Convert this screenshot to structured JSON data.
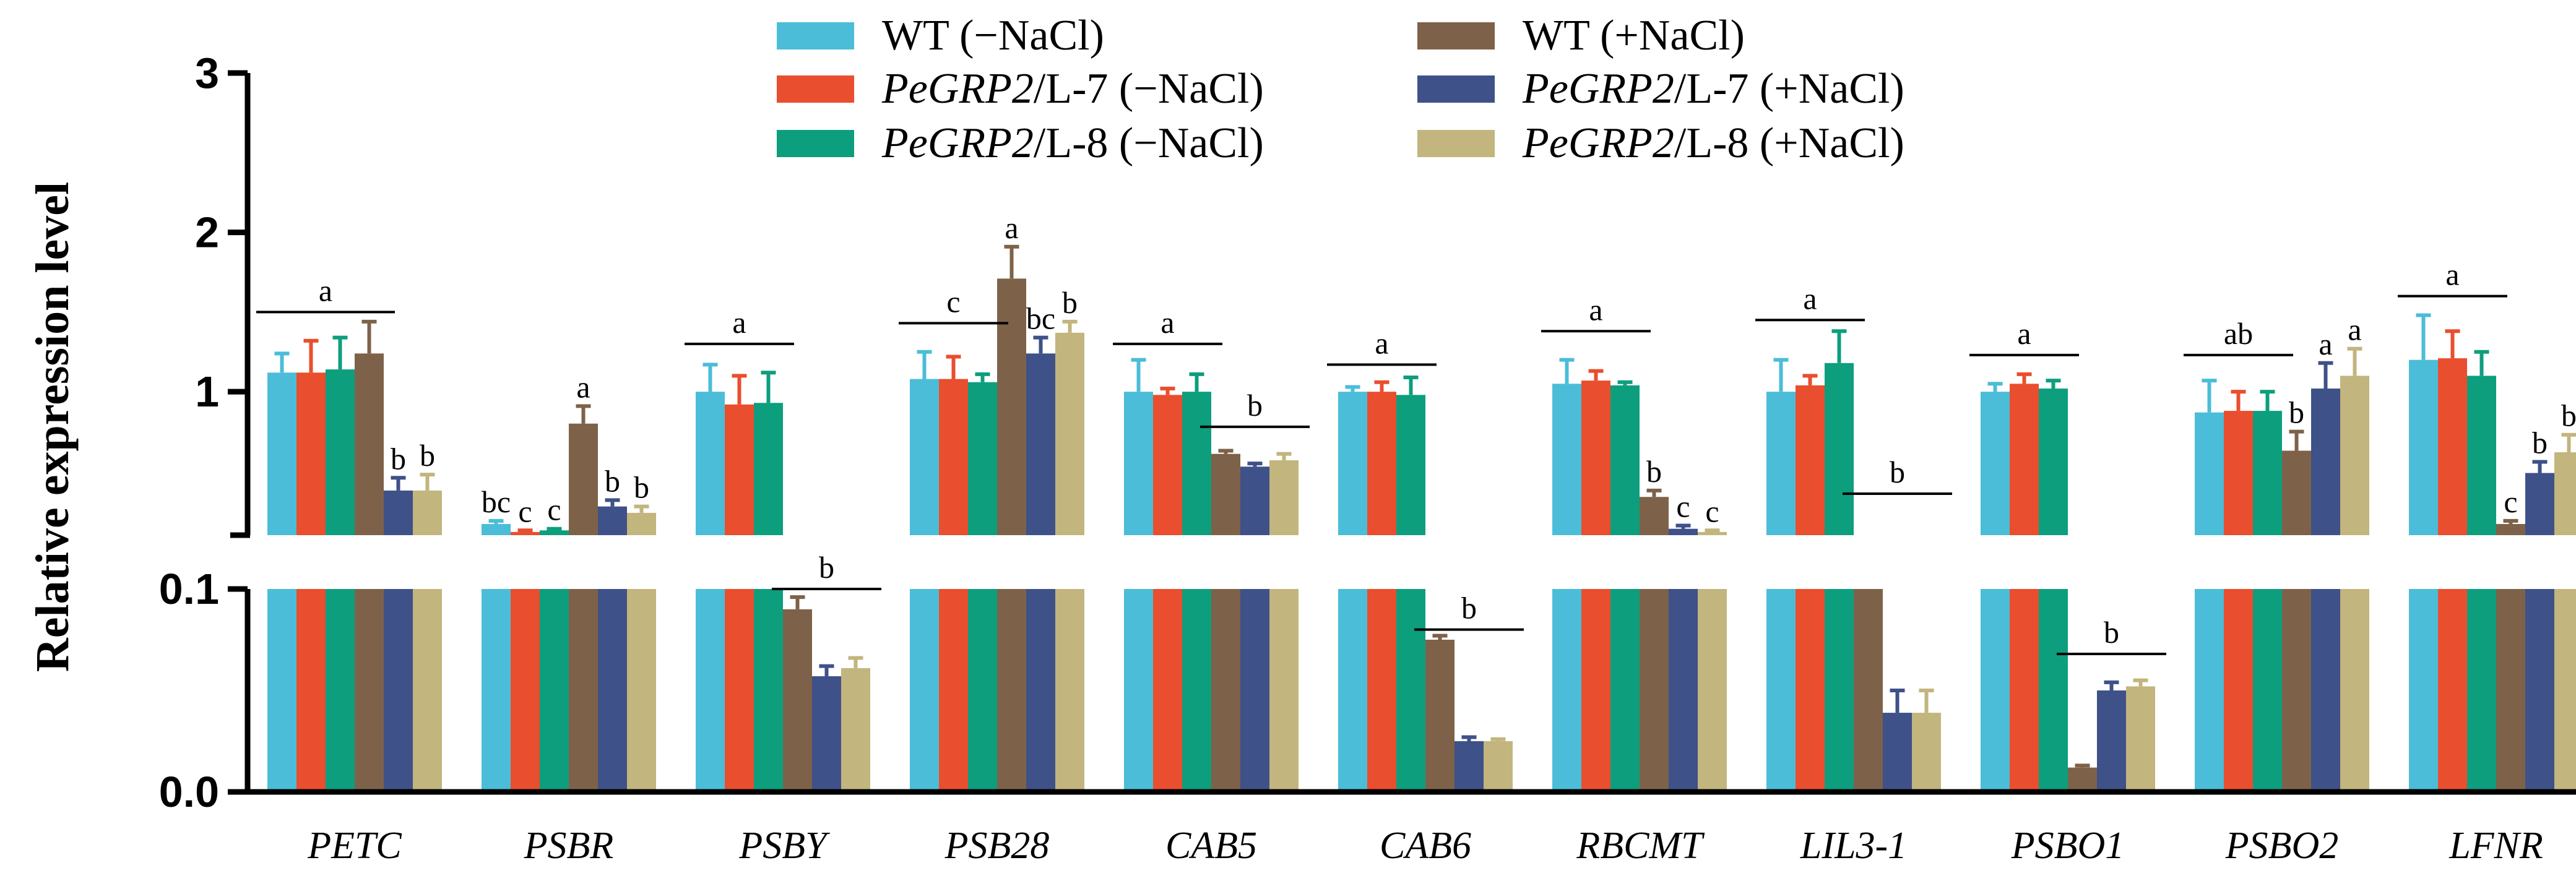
{
  "chart_data": {
    "type": "bar",
    "title": "",
    "ylabel": "Relative expression level",
    "axis_break": {
      "lower_range": [
        0.0,
        0.1
      ],
      "upper_range": [
        0.1,
        3.0
      ]
    },
    "yticks_lower": [
      "0.0",
      "0.1"
    ],
    "yticks_upper": [
      "1",
      "2",
      "3"
    ],
    "categories": [
      "PETC",
      "PSBR",
      "PSBY",
      "PSB28",
      "CAB5",
      "CAB6",
      "RBCMT",
      "LIL3-1",
      "PSBO1",
      "PSBO2",
      "LFNR"
    ],
    "series": [
      {
        "legend_prefix": "WT",
        "legend_italic": "",
        "legend_suffix": " (−NaCl)",
        "color": "#4bbdd8",
        "values": [
          1.12,
          0.17,
          1.0,
          1.08,
          1.0,
          1.0,
          1.05,
          1.0,
          1.0,
          0.87,
          1.2
        ],
        "errors": [
          0.12,
          0.02,
          0.17,
          0.17,
          0.2,
          0.03,
          0.15,
          0.2,
          0.05,
          0.2,
          0.28
        ]
      },
      {
        "legend_prefix": "",
        "legend_italic": "PeGRP2",
        "legend_suffix": "/L-7 (−NaCl)",
        "color": "#e94e2e",
        "values": [
          1.12,
          0.12,
          0.92,
          1.08,
          0.98,
          1.0,
          1.07,
          1.04,
          1.05,
          0.88,
          1.21
        ],
        "errors": [
          0.2,
          0.01,
          0.18,
          0.14,
          0.04,
          0.06,
          0.06,
          0.06,
          0.06,
          0.12,
          0.17
        ]
      },
      {
        "legend_prefix": "",
        "legend_italic": "PeGRP2",
        "legend_suffix": "/L-8 (−NaCl)",
        "color": "#0d9e7e",
        "values": [
          1.14,
          0.13,
          0.93,
          1.06,
          1.0,
          0.98,
          1.04,
          1.18,
          1.02,
          0.88,
          1.1
        ],
        "errors": [
          0.2,
          0.01,
          0.19,
          0.05,
          0.11,
          0.11,
          0.02,
          0.2,
          0.05,
          0.12,
          0.15
        ]
      },
      {
        "legend_prefix": "WT",
        "legend_italic": "",
        "legend_suffix": " (+NaCl)",
        "color": "#7d6249",
        "values": [
          1.24,
          0.8,
          0.09,
          1.71,
          0.61,
          0.075,
          0.34,
          0.1,
          0.012,
          0.63,
          0.17
        ],
        "errors": [
          0.2,
          0.11,
          0.006,
          0.2,
          0.02,
          0.002,
          0.04,
          0.0,
          0.001,
          0.12,
          0.02
        ]
      },
      {
        "legend_prefix": "",
        "legend_italic": "PeGRP2",
        "legend_suffix": "/L-7 (+NaCl)",
        "color": "#3e5188",
        "values": [
          0.38,
          0.28,
          0.057,
          1.24,
          0.53,
          0.025,
          0.14,
          0.039,
          0.05,
          1.02,
          0.49
        ],
        "errors": [
          0.08,
          0.04,
          0.005,
          0.1,
          0.02,
          0.002,
          0.02,
          0.011,
          0.004,
          0.16,
          0.07
        ]
      },
      {
        "legend_prefix": "",
        "legend_italic": "PeGRP2",
        "legend_suffix": "/L-8 (+NaCl)",
        "color": "#c2b57d",
        "values": [
          0.38,
          0.24,
          0.061,
          1.37,
          0.57,
          0.025,
          0.12,
          0.039,
          0.052,
          1.1,
          0.62
        ],
        "errors": [
          0.1,
          0.04,
          0.005,
          0.07,
          0.04,
          0.001,
          0.01,
          0.011,
          0.003,
          0.17,
          0.11
        ]
      }
    ],
    "annotations": [
      {
        "gene": 0,
        "label": "a",
        "line": [
          0,
          3
        ],
        "y": 1.5
      },
      {
        "gene": 0,
        "label": "b",
        "bar": 4
      },
      {
        "gene": 0,
        "label": "b",
        "bar": 5
      },
      {
        "gene": 1,
        "label": "bc",
        "bar": 0
      },
      {
        "gene": 1,
        "label": "c",
        "bar": 1
      },
      {
        "gene": 1,
        "label": "c",
        "bar": 2
      },
      {
        "gene": 1,
        "label": "a",
        "bar": 3
      },
      {
        "gene": 1,
        "label": "b",
        "bar": 4
      },
      {
        "gene": 1,
        "label": "b",
        "bar": 5
      },
      {
        "gene": 2,
        "label": "a",
        "line": [
          0,
          2
        ],
        "y": 1.3
      },
      {
        "gene": 2,
        "label": "b",
        "line": [
          3,
          5
        ],
        "y": 0.1,
        "panel": "lower"
      },
      {
        "gene": 3,
        "label": "c",
        "line": [
          0,
          2
        ],
        "y": 1.43
      },
      {
        "gene": 3,
        "label": "a",
        "bar": 3
      },
      {
        "gene": 3,
        "label": "bc",
        "bar": 4
      },
      {
        "gene": 3,
        "label": "b",
        "bar": 5
      },
      {
        "gene": 4,
        "label": "a",
        "line": [
          0,
          2
        ],
        "y": 1.3
      },
      {
        "gene": 4,
        "label": "b",
        "line": [
          3,
          5
        ],
        "y": 0.78
      },
      {
        "gene": 5,
        "label": "a",
        "line": [
          0,
          2
        ],
        "y": 1.17
      },
      {
        "gene": 5,
        "label": "b",
        "line": [
          3,
          5
        ],
        "y": 0.08,
        "panel": "lower"
      },
      {
        "gene": 6,
        "label": "a",
        "line": [
          0,
          2
        ],
        "y": 1.38
      },
      {
        "gene": 6,
        "label": "b",
        "bar": 3
      },
      {
        "gene": 6,
        "label": "c",
        "bar": 4
      },
      {
        "gene": 6,
        "label": "c",
        "bar": 5
      },
      {
        "gene": 7,
        "label": "a",
        "line": [
          0,
          2
        ],
        "y": 1.45
      },
      {
        "gene": 7,
        "label": "b",
        "line": [
          3,
          5
        ],
        "y": 0.36
      },
      {
        "gene": 8,
        "label": "a",
        "line": [
          0,
          2
        ],
        "y": 1.23
      },
      {
        "gene": 8,
        "label": "b",
        "line": [
          3,
          5
        ],
        "y": 0.068,
        "panel": "lower"
      },
      {
        "gene": 9,
        "label": "ab",
        "line": [
          0,
          2
        ],
        "y": 1.23
      },
      {
        "gene": 9,
        "label": "b",
        "bar": 3
      },
      {
        "gene": 9,
        "label": "a",
        "bar": 4
      },
      {
        "gene": 9,
        "label": "a",
        "bar": 5
      },
      {
        "gene": 10,
        "label": "a",
        "line": [
          0,
          2
        ],
        "y": 1.6
      },
      {
        "gene": 10,
        "label": "c",
        "bar": 3
      },
      {
        "gene": 10,
        "label": "b",
        "bar": 4
      },
      {
        "gene": 10,
        "label": "b",
        "bar": 5
      }
    ],
    "legend_position": "top-center",
    "grid": false
  }
}
